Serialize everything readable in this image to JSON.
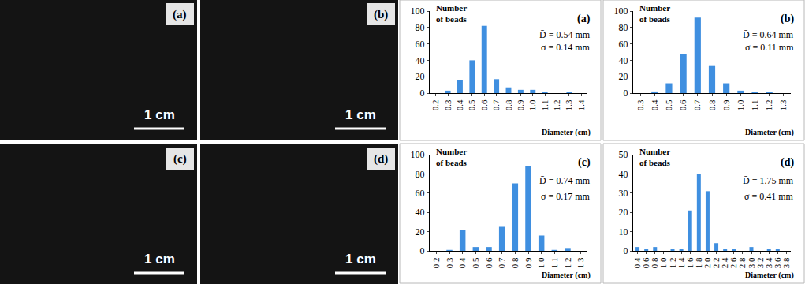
{
  "photos": [
    {
      "label": "(a)",
      "scale": "1 cm"
    },
    {
      "label": "(b)",
      "scale": "1 cm"
    },
    {
      "label": "(c)",
      "scale": "1 cm"
    },
    {
      "label": "(d)",
      "scale": "1 cm"
    }
  ],
  "chart_data": [
    {
      "type": "bar",
      "panel_label": "(a)",
      "y_label": "Number of beads",
      "x_label": "Diameter (cm)",
      "categories": [
        "0.2",
        "0.3",
        "0.4",
        "0.5",
        "0.6",
        "0.7",
        "0.8",
        "0.9",
        "1.0",
        "1.1",
        "1.2",
        "1.3",
        "1.4"
      ],
      "values": [
        0,
        3,
        16,
        40,
        82,
        17,
        7,
        4,
        4,
        1,
        0,
        1,
        0
      ],
      "color": "#3f8fe0",
      "ylim": [
        0,
        100
      ],
      "yticks": [
        0,
        20,
        40,
        60,
        80,
        100
      ],
      "annotations": [
        "D̄ = 0.54 mm",
        "σ = 0.14 mm"
      ]
    },
    {
      "type": "bar",
      "panel_label": "(b)",
      "y_label": "Number of beads",
      "x_label": "Diameter (cm)",
      "categories": [
        "0.3",
        "0.4",
        "0.5",
        "0.6",
        "0.7",
        "0.8",
        "0.9",
        "1.0",
        "1.1",
        "1.2",
        "1.3"
      ],
      "values": [
        0,
        2,
        12,
        48,
        92,
        33,
        12,
        3,
        1,
        1,
        0
      ],
      "color": "#3f8fe0",
      "ylim": [
        0,
        100
      ],
      "yticks": [
        0,
        20,
        40,
        60,
        80,
        100
      ],
      "annotations": [
        "D̄ = 0.64 mm",
        "σ = 0.11 mm"
      ]
    },
    {
      "type": "bar",
      "panel_label": "(c)",
      "y_label": "Number of beads",
      "x_label": "Diameter (cm)",
      "categories": [
        "0.2",
        "0.3",
        "0.4",
        "0.5",
        "0.6",
        "0.7",
        "0.8",
        "0.9",
        "1.0",
        "1.1",
        "1.2",
        "1.3"
      ],
      "values": [
        0,
        1,
        22,
        4,
        4,
        25,
        70,
        88,
        16,
        1,
        3,
        0
      ],
      "color": "#3f8fe0",
      "ylim": [
        0,
        100
      ],
      "yticks": [
        0,
        20,
        40,
        60,
        80,
        100
      ],
      "annotations": [
        "D̄ = 0.74 mm",
        "σ = 0.17 mm"
      ]
    },
    {
      "type": "bar",
      "panel_label": "(d)",
      "y_label": "Number of beads",
      "x_label": "Diameter (cm)",
      "categories": [
        "0.4",
        "0.6",
        "0.8",
        "1.0",
        "1.2",
        "1.4",
        "1.6",
        "1.8",
        "2.0",
        "2.2",
        "2.4",
        "2.6",
        "2.8",
        "3.0",
        "3.2",
        "3.4",
        "3.6",
        "3.8"
      ],
      "values": [
        2,
        1,
        2,
        0,
        1,
        1,
        21,
        40,
        31,
        4,
        1,
        1,
        0,
        2,
        0,
        1,
        1,
        0
      ],
      "color": "#3f8fe0",
      "ylim": [
        0,
        50
      ],
      "yticks": [
        0,
        10,
        20,
        30,
        40,
        50
      ],
      "annotations": [
        "D̄ = 1.75 mm",
        "σ = 0.41 mm"
      ]
    }
  ]
}
